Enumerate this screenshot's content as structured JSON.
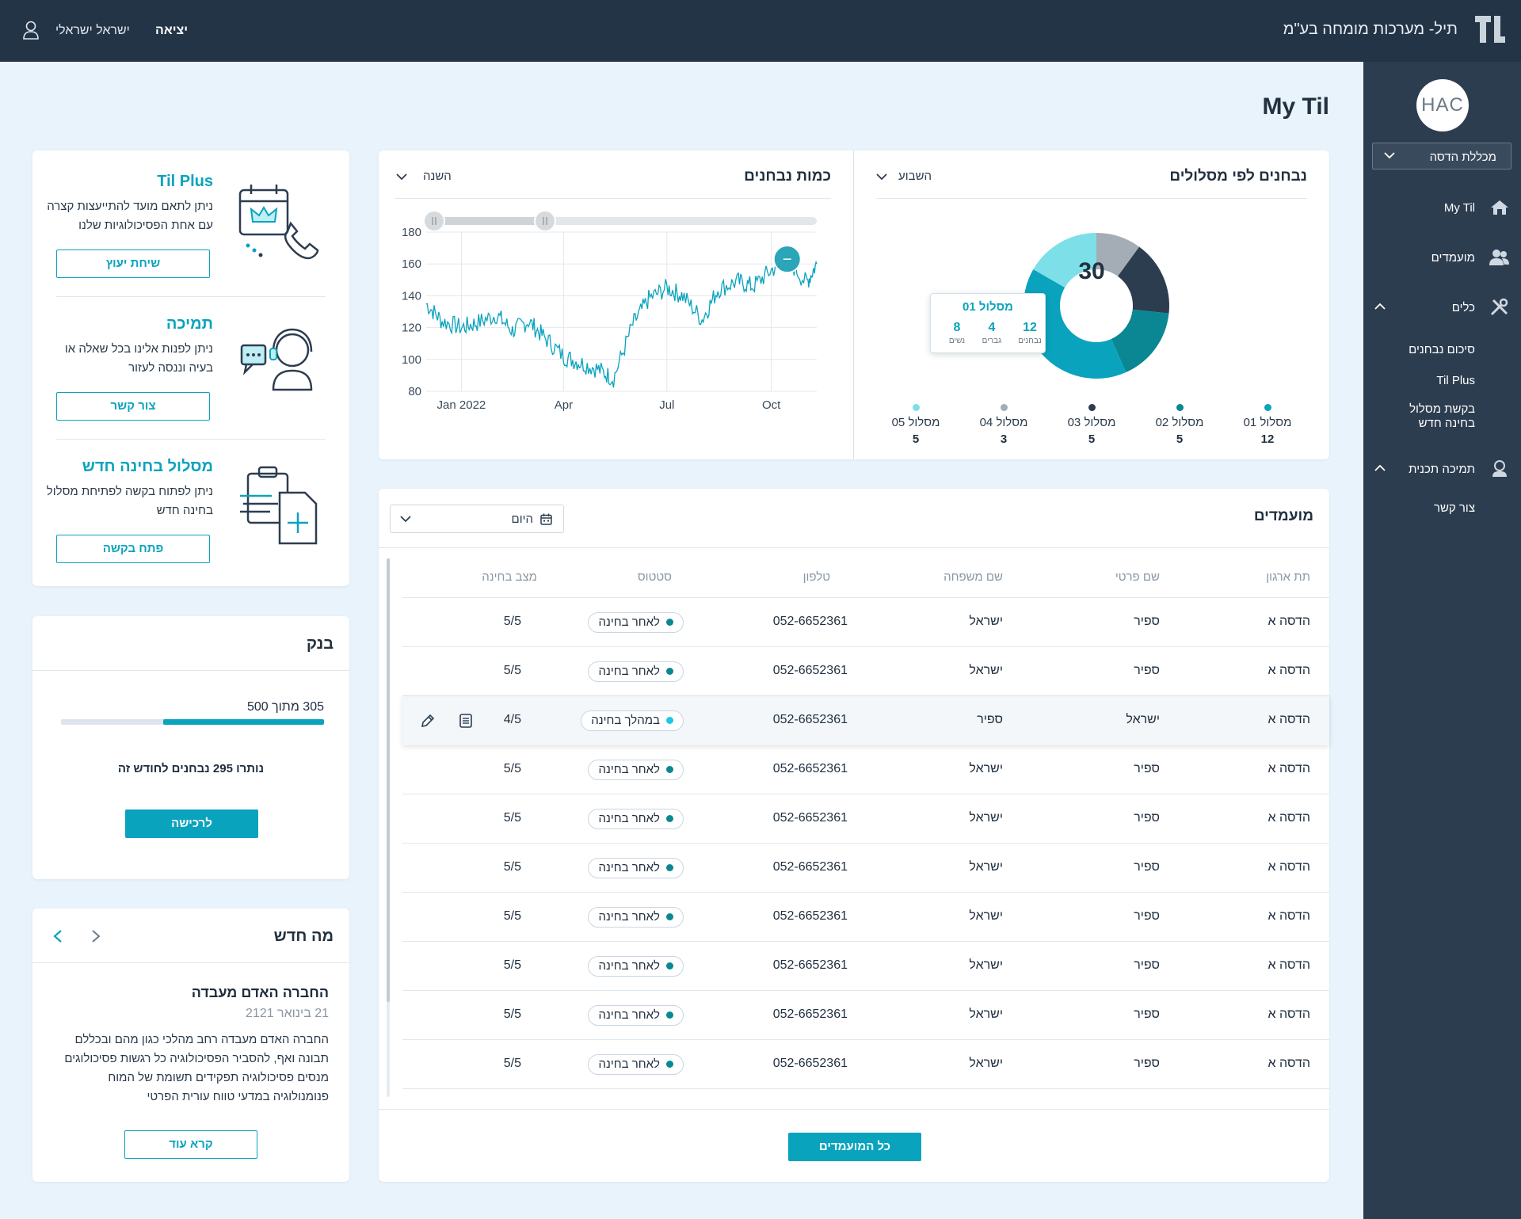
{
  "header": {
    "company": "תיל- מערכות מומחה בע\"מ",
    "user_name": "ישראל ישראלי",
    "logout": "יציאה"
  },
  "sidebar": {
    "org_logo_text": "HAC",
    "org_select": "מכללת הדסה",
    "items": [
      {
        "label": "My Til",
        "icon": "home-icon"
      },
      {
        "label": "מועמדים",
        "icon": "users-icon"
      },
      {
        "label": "כלים",
        "icon": "tools-icon"
      },
      {
        "label": "תמיכה תכנית",
        "icon": "support-icon"
      }
    ],
    "tools_sub": [
      "סיכום נבחנים",
      "Til Plus",
      "בקשת מסלול בחינה חדש"
    ],
    "support_sub": [
      "צור קשר"
    ]
  },
  "page": {
    "title": "My Til"
  },
  "services": [
    {
      "title": "Til Plus",
      "desc": "ניתן לתאם מועד להתייעצות קצרה עם אחת הפסיכולוגיות שלנו",
      "button": "שיחת יעוץ",
      "icon": "calendar-phone-icon"
    },
    {
      "title": "תמיכה",
      "desc": "ניתן לפנות אלינו בכל שאלה או בעיה וננסה לעזור",
      "button": "צור קשר",
      "icon": "headset-support-icon"
    },
    {
      "title": "מסלול בחינה חדש",
      "desc": "ניתן לפתוח בקשה לפתיחת מסלול בחינה חדש",
      "button": "פתח בקשה",
      "icon": "clipboard-add-icon"
    }
  ],
  "bank": {
    "title": "בנק",
    "usage": "305 מתוך 500",
    "used": 305,
    "total": 500,
    "remaining": "נותרו 295 נבחנים לחודש זה",
    "button": "לרכישה"
  },
  "news": {
    "title": "מה חדש",
    "headline": "החברה האדם מעבדה",
    "date": "21 בינואר 2121",
    "body": "החברה האדם מעבדה רחב מהלכי כגון מהם ובכללם תבונה ואף, להסביר הפסיכולוגיה כל רגשות פסיכולוגים מנסים פסיכולוגיה תפקידים תשומת של המוח פנומנולוגיה במדעי טווח עורית הפרטי",
    "button": "קרא עוד"
  },
  "donut_card": {
    "title": "נבחנים לפי מסלולים",
    "period": "השבוע",
    "total": "30",
    "tooltip": {
      "title": "מסלול 01",
      "vals": [
        "12",
        "4",
        "8"
      ],
      "labels": [
        "נבחנים",
        "גברים",
        "נשים"
      ]
    },
    "legend": [
      {
        "label": "מסלול 01",
        "value": "12",
        "color": "#0aa3bd"
      },
      {
        "label": "מסלול 02",
        "value": "5",
        "color": "#0a8792"
      },
      {
        "label": "מסלול 03",
        "value": "5",
        "color": "#2d3d50"
      },
      {
        "label": "מסלול 04",
        "value": "3",
        "color": "#a4adb5"
      },
      {
        "label": "מסלול 05",
        "value": "5",
        "color": "#7ddfe8"
      }
    ]
  },
  "line_card": {
    "title": "כמות נבחנים",
    "period": "השנה"
  },
  "chart_data": [
    {
      "type": "pie",
      "title": "נבחנים לפי מסלולים",
      "categories": [
        "מסלול 01",
        "מסלול 02",
        "מסלול 03",
        "מסלול 04",
        "מסלול 05"
      ],
      "values": [
        12,
        5,
        5,
        3,
        5
      ],
      "colors": [
        "#0aa3bd",
        "#0a8792",
        "#2d3d50",
        "#a4adb5",
        "#7ddfe8"
      ],
      "center_label": "30"
    },
    {
      "type": "line",
      "title": "כמות נבחנים",
      "x_ticks": [
        "Jan 2022",
        "Apr",
        "Jul",
        "Oct"
      ],
      "ylim": [
        80,
        180
      ],
      "y_ticks": [
        80,
        100,
        120,
        140,
        160,
        180
      ],
      "grid": true,
      "series": [
        {
          "color": "#0aa3bd",
          "x": [
            "2021-12-01",
            "2021-12-15",
            "2022-01-01",
            "2022-01-15",
            "2022-02-01",
            "2022-02-15",
            "2022-03-01",
            "2022-03-15",
            "2022-04-01",
            "2022-04-15",
            "2022-05-01",
            "2022-05-15",
            "2022-06-01",
            "2022-06-15",
            "2022-07-01",
            "2022-07-15",
            "2022-08-01",
            "2022-08-15",
            "2022-09-01",
            "2022-09-15",
            "2022-10-01",
            "2022-10-15",
            "2022-11-01",
            "2022-11-10"
          ],
          "y": [
            135,
            124,
            120,
            123,
            128,
            118,
            124,
            114,
            102,
            98,
            94,
            88,
            122,
            138,
            145,
            140,
            125,
            144,
            149,
            146,
            156,
            163,
            148,
            160
          ]
        }
      ]
    }
  ],
  "candidates": {
    "title": "מועמדים",
    "date_filter": "היום",
    "columns": [
      "תת ארגון",
      "שם פרטי",
      "שם משפחה",
      "טלפון",
      "סטטוס",
      "מצב בחינה"
    ],
    "rows": [
      {
        "org": "הדסה א",
        "first": "ספיר",
        "last": "ישראל",
        "phone": "052-6652361",
        "status": "לאחר בחינה",
        "status_color": "#0a8792",
        "score": "5/5"
      },
      {
        "org": "הדסה א",
        "first": "ספיר",
        "last": "ישראל",
        "phone": "052-6652361",
        "status": "לאחר בחינה",
        "status_color": "#0a8792",
        "score": "5/5"
      },
      {
        "org": "הדסה א",
        "first": "ישראל",
        "last": "ספיר",
        "phone": "052-6652361",
        "status": "במהלך בחינה",
        "status_color": "#1cc8e3",
        "score": "4/5"
      },
      {
        "org": "הדסה א",
        "first": "ספיר",
        "last": "ישראל",
        "phone": "052-6652361",
        "status": "לאחר בחינה",
        "status_color": "#0a8792",
        "score": "5/5"
      },
      {
        "org": "הדסה א",
        "first": "ספיר",
        "last": "ישראל",
        "phone": "052-6652361",
        "status": "לאחר בחינה",
        "status_color": "#0a8792",
        "score": "5/5"
      },
      {
        "org": "הדסה א",
        "first": "ספיר",
        "last": "ישראל",
        "phone": "052-6652361",
        "status": "לאחר בחינה",
        "status_color": "#0a8792",
        "score": "5/5"
      },
      {
        "org": "הדסה א",
        "first": "ספיר",
        "last": "ישראל",
        "phone": "052-6652361",
        "status": "לאחר בחינה",
        "status_color": "#0a8792",
        "score": "5/5"
      },
      {
        "org": "הדסה א",
        "first": "ספיר",
        "last": "ישראל",
        "phone": "052-6652361",
        "status": "לאחר בחינה",
        "status_color": "#0a8792",
        "score": "5/5"
      },
      {
        "org": "הדסה א",
        "first": "ספיר",
        "last": "ישראל",
        "phone": "052-6652361",
        "status": "לאחר בחינה",
        "status_color": "#0a8792",
        "score": "5/5"
      },
      {
        "org": "הדסה א",
        "first": "ספיר",
        "last": "ישראל",
        "phone": "052-6652361",
        "status": "לאחר בחינה",
        "status_color": "#0a8792",
        "score": "5/5"
      }
    ],
    "all_button": "כל המועמדים"
  }
}
